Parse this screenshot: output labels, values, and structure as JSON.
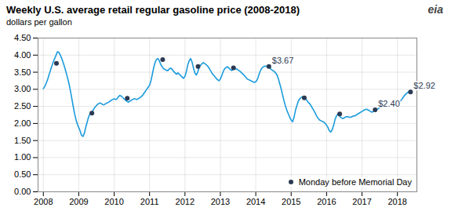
{
  "chart_data": {
    "type": "line",
    "title": "Weekly U.S. average retail regular gasoline price (2008-2018)",
    "subtitle": "dollars per gallon",
    "logo": "eia",
    "xlim": [
      2007.85,
      2018.55
    ],
    "xticks": [
      2008,
      2009,
      2010,
      2011,
      2012,
      2013,
      2014,
      2015,
      2016,
      2017,
      2018
    ],
    "ylim": [
      0.0,
      4.5
    ],
    "yticks": [
      {
        "value": 0.0,
        "label": "0.00"
      },
      {
        "value": 0.5,
        "label": "0.50"
      },
      {
        "value": 1.0,
        "label": "1.00"
      },
      {
        "value": 1.5,
        "label": "1.50"
      },
      {
        "value": 2.0,
        "label": "2.00"
      },
      {
        "value": 2.5,
        "label": "2.50"
      },
      {
        "value": 3.0,
        "label": "3.00"
      },
      {
        "value": 3.5,
        "label": "3.50"
      },
      {
        "value": 4.0,
        "label": "4.00"
      },
      {
        "value": 4.5,
        "label": "4.50"
      }
    ],
    "grid": true,
    "legend": "lower right",
    "series": [
      {
        "type": "line",
        "color": "#1a9bdc",
        "x": [
          2008.0,
          2008.04,
          2008.08,
          2008.12,
          2008.16,
          2008.2,
          2008.24,
          2008.28,
          2008.32,
          2008.36,
          2008.4,
          2008.44,
          2008.48,
          2008.52,
          2008.56,
          2008.6,
          2008.64,
          2008.68,
          2008.72,
          2008.76,
          2008.8,
          2008.84,
          2008.88,
          2008.92,
          2008.96,
          2009.0,
          2009.04,
          2009.08,
          2009.12,
          2009.16,
          2009.2,
          2009.24,
          2009.28,
          2009.32,
          2009.36,
          2009.4,
          2009.44,
          2009.48,
          2009.52,
          2009.56,
          2009.6,
          2009.64,
          2009.68,
          2009.72,
          2009.76,
          2009.8,
          2009.84,
          2009.88,
          2009.92,
          2009.96,
          2010.0,
          2010.04,
          2010.08,
          2010.12,
          2010.16,
          2010.2,
          2010.24,
          2010.28,
          2010.32,
          2010.36,
          2010.4,
          2010.44,
          2010.48,
          2010.52,
          2010.56,
          2010.6,
          2010.64,
          2010.68,
          2010.72,
          2010.76,
          2010.8,
          2010.84,
          2010.88,
          2010.92,
          2010.96,
          2011.0,
          2011.04,
          2011.08,
          2011.12,
          2011.16,
          2011.2,
          2011.24,
          2011.28,
          2011.32,
          2011.36,
          2011.4,
          2011.44,
          2011.48,
          2011.52,
          2011.56,
          2011.6,
          2011.64,
          2011.68,
          2011.72,
          2011.76,
          2011.8,
          2011.84,
          2011.88,
          2011.92,
          2011.96,
          2012.0,
          2012.04,
          2012.08,
          2012.12,
          2012.16,
          2012.2,
          2012.24,
          2012.28,
          2012.32,
          2012.36,
          2012.4,
          2012.44,
          2012.48,
          2012.52,
          2012.56,
          2012.6,
          2012.64,
          2012.68,
          2012.72,
          2012.76,
          2012.8,
          2012.84,
          2012.88,
          2012.92,
          2012.96,
          2013.0,
          2013.04,
          2013.08,
          2013.12,
          2013.16,
          2013.2,
          2013.24,
          2013.28,
          2013.32,
          2013.36,
          2013.4,
          2013.44,
          2013.48,
          2013.52,
          2013.56,
          2013.6,
          2013.64,
          2013.68,
          2013.72,
          2013.76,
          2013.8,
          2013.84,
          2013.88,
          2013.92,
          2013.96,
          2014.0,
          2014.04,
          2014.08,
          2014.12,
          2014.16,
          2014.2,
          2014.24,
          2014.28,
          2014.32,
          2014.36,
          2014.4,
          2014.44,
          2014.48,
          2014.52,
          2014.56,
          2014.6,
          2014.64,
          2014.68,
          2014.72,
          2014.76,
          2014.8,
          2014.84,
          2014.88,
          2014.92,
          2014.96,
          2015.0,
          2015.04,
          2015.08,
          2015.12,
          2015.16,
          2015.2,
          2015.24,
          2015.28,
          2015.32,
          2015.36,
          2015.4,
          2015.44,
          2015.48,
          2015.52,
          2015.56,
          2015.6,
          2015.64,
          2015.68,
          2015.72,
          2015.76,
          2015.8,
          2015.84,
          2015.88,
          2015.92,
          2015.96,
          2016.0,
          2016.04,
          2016.08,
          2016.12,
          2016.16,
          2016.2,
          2016.24,
          2016.28,
          2016.32,
          2016.36,
          2016.4,
          2016.44,
          2016.48,
          2016.52,
          2016.56,
          2016.6,
          2016.64,
          2016.68,
          2016.72,
          2016.76,
          2016.8,
          2016.84,
          2016.88,
          2016.92,
          2016.96,
          2017.0,
          2017.04,
          2017.08,
          2017.12,
          2017.16,
          2017.2,
          2017.24,
          2017.28,
          2017.32,
          2017.36,
          2017.4,
          2017.44,
          2017.48,
          2017.52,
          2017.56,
          2017.6,
          2017.64,
          2017.68,
          2017.72,
          2017.76,
          2017.8,
          2017.84,
          2017.88,
          2017.92,
          2017.96,
          2018.0,
          2018.04,
          2018.08,
          2018.12,
          2018.16,
          2018.2,
          2018.24,
          2018.28,
          2018.32,
          2018.36,
          2018.4
        ],
        "values": [
          3.02,
          3.08,
          3.18,
          3.28,
          3.42,
          3.55,
          3.68,
          3.8,
          3.9,
          4.0,
          4.1,
          4.08,
          4.0,
          3.9,
          3.78,
          3.65,
          3.5,
          3.35,
          3.18,
          2.98,
          2.75,
          2.52,
          2.3,
          2.12,
          1.98,
          1.88,
          1.78,
          1.65,
          1.62,
          1.72,
          1.9,
          2.05,
          2.2,
          2.28,
          2.32,
          2.38,
          2.45,
          2.5,
          2.55,
          2.58,
          2.6,
          2.58,
          2.55,
          2.55,
          2.58,
          2.6,
          2.62,
          2.65,
          2.68,
          2.7,
          2.72,
          2.7,
          2.72,
          2.78,
          2.82,
          2.8,
          2.76,
          2.72,
          2.68,
          2.65,
          2.62,
          2.65,
          2.68,
          2.7,
          2.72,
          2.72,
          2.7,
          2.72,
          2.75,
          2.78,
          2.82,
          2.88,
          2.94,
          3.0,
          3.06,
          3.12,
          3.25,
          3.45,
          3.65,
          3.8,
          3.88,
          3.9,
          3.82,
          3.72,
          3.65,
          3.6,
          3.58,
          3.55,
          3.55,
          3.6,
          3.62,
          3.58,
          3.52,
          3.48,
          3.44,
          3.48,
          3.44,
          3.4,
          3.36,
          3.32,
          3.38,
          3.52,
          3.72,
          3.84,
          3.9,
          3.8,
          3.62,
          3.48,
          3.42,
          3.5,
          3.65,
          3.7,
          3.75,
          3.78,
          3.75,
          3.72,
          3.68,
          3.62,
          3.55,
          3.48,
          3.42,
          3.38,
          3.32,
          3.28,
          3.25,
          3.3,
          3.4,
          3.52,
          3.6,
          3.64,
          3.66,
          3.62,
          3.58,
          3.55,
          3.58,
          3.62,
          3.6,
          3.58,
          3.55,
          3.52,
          3.48,
          3.44,
          3.4,
          3.35,
          3.3,
          3.28,
          3.26,
          3.24,
          3.22,
          3.2,
          3.22,
          3.28,
          3.4,
          3.52,
          3.6,
          3.65,
          3.67,
          3.68,
          3.67,
          3.65,
          3.62,
          3.58,
          3.55,
          3.52,
          3.48,
          3.42,
          3.3,
          3.15,
          3.0,
          2.82,
          2.65,
          2.5,
          2.38,
          2.28,
          2.18,
          2.1,
          2.05,
          2.18,
          2.38,
          2.52,
          2.65,
          2.72,
          2.76,
          2.78,
          2.76,
          2.72,
          2.68,
          2.62,
          2.58,
          2.52,
          2.45,
          2.38,
          2.3,
          2.22,
          2.15,
          2.1,
          2.08,
          2.06,
          2.04,
          2.0,
          1.95,
          1.88,
          1.78,
          1.75,
          1.82,
          1.95,
          2.12,
          2.22,
          2.28,
          2.22,
          2.18,
          2.15,
          2.15,
          2.18,
          2.2,
          2.2,
          2.18,
          2.18,
          2.2,
          2.22,
          2.22,
          2.25,
          2.28,
          2.3,
          2.33,
          2.35,
          2.38,
          2.4,
          2.42,
          2.4,
          2.38,
          2.35,
          2.33,
          2.35,
          2.38,
          2.4,
          2.42,
          2.45,
          2.48,
          2.52,
          2.55,
          2.55,
          2.52,
          2.5,
          2.5,
          2.52,
          2.55,
          2.55,
          2.58,
          2.6,
          2.6,
          2.62,
          2.65,
          2.7,
          2.76,
          2.82,
          2.86,
          2.9,
          2.92,
          2.92,
          2.9
        ]
      },
      {
        "type": "scatter",
        "name": "Monday before Memorial Day",
        "color": "#2b3a52",
        "marker": "circle",
        "x": [
          2008.37,
          2009.37,
          2010.37,
          2011.37,
          2012.37,
          2013.37,
          2014.37,
          2015.37,
          2016.37,
          2017.37,
          2018.37
        ],
        "values": [
          3.76,
          2.3,
          2.74,
          3.87,
          3.67,
          3.63,
          3.67,
          2.75,
          2.28,
          2.4,
          2.92
        ]
      }
    ],
    "annotations": [
      {
        "x": 2014.37,
        "y": 3.67,
        "text": "$3.67"
      },
      {
        "x": 2017.37,
        "y": 2.4,
        "text": "$2.40"
      },
      {
        "x": 2018.37,
        "y": 2.92,
        "text": "$2.92"
      }
    ]
  }
}
